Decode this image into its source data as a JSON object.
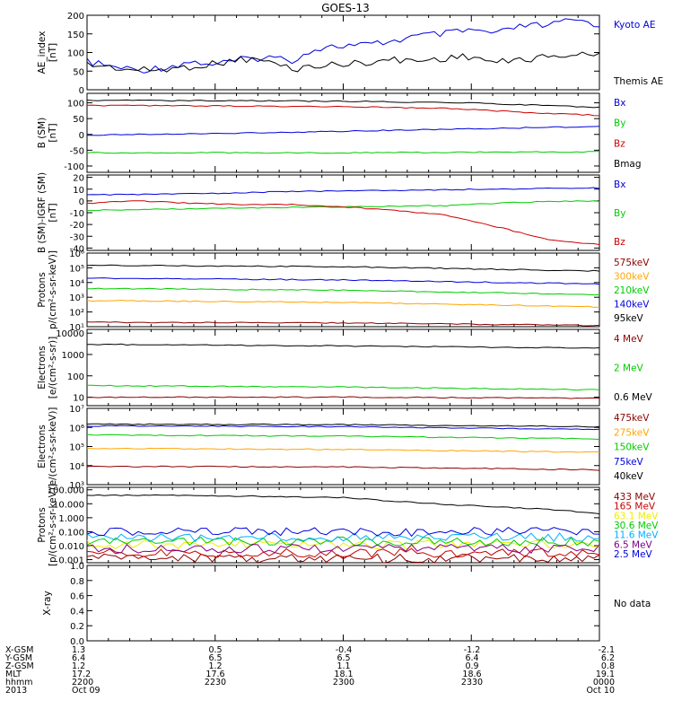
{
  "title": "GOES-13",
  "colors": {
    "blue": "#0000dd",
    "red": "#cc0000",
    "green": "#00cc00",
    "orange": "#ffa500",
    "black": "#000000",
    "darkred": "#8b0000",
    "yellow": "#eeee00",
    "cyan": "#00b0ff",
    "purple": "#800080"
  },
  "chart_data": [
    {
      "type": "line",
      "ylabel": "AE_index\n[nT]",
      "yscale": "linear",
      "ylim": [
        0,
        200
      ],
      "yticks": [
        0,
        50,
        100,
        150,
        200
      ],
      "ytick_labels": [
        "0",
        "50",
        "100",
        "150",
        "200"
      ],
      "series": [
        {
          "name": "Kyoto AE",
          "color": "blue",
          "values": [
            [
              0,
              75
            ],
            [
              0.05,
              62
            ],
            [
              0.1,
              52
            ],
            [
              0.16,
              62
            ],
            [
              0.2,
              75
            ],
            [
              0.25,
              68
            ],
            [
              0.3,
              80
            ],
            [
              0.35,
              88
            ],
            [
              0.4,
              80
            ],
            [
              0.45,
              112
            ],
            [
              0.5,
              118
            ],
            [
              0.55,
              120
            ],
            [
              0.6,
              132
            ],
            [
              0.65,
              145
            ],
            [
              0.7,
              150
            ],
            [
              0.75,
              160
            ],
            [
              0.8,
              150
            ],
            [
              0.85,
              172
            ],
            [
              0.9,
              172
            ],
            [
              0.95,
              188
            ],
            [
              1,
              175
            ]
          ]
        },
        {
          "name": "Themis AE",
          "color": "black",
          "values": [
            [
              0,
              68
            ],
            [
              0.05,
              60
            ],
            [
              0.1,
              52
            ],
            [
              0.16,
              55
            ],
            [
              0.2,
              62
            ],
            [
              0.25,
              70
            ],
            [
              0.3,
              82
            ],
            [
              0.35,
              78
            ],
            [
              0.4,
              55
            ],
            [
              0.45,
              65
            ],
            [
              0.5,
              68
            ],
            [
              0.55,
              75
            ],
            [
              0.6,
              80
            ],
            [
              0.65,
              78
            ],
            [
              0.7,
              85
            ],
            [
              0.75,
              90
            ],
            [
              0.8,
              72
            ],
            [
              0.85,
              82
            ],
            [
              0.9,
              88
            ],
            [
              0.95,
              95
            ],
            [
              1,
              92
            ]
          ]
        }
      ]
    },
    {
      "type": "line",
      "ylabel": "B (SM)\n[nT]",
      "yscale": "linear",
      "ylim": [
        -120,
        130
      ],
      "yticks": [
        -100,
        -50,
        0,
        50,
        100
      ],
      "ytick_labels": [
        "-100",
        "-50",
        "0",
        "50",
        "100"
      ],
      "series": [
        {
          "name": "Bx",
          "color": "blue",
          "values": [
            [
              0,
              -2
            ],
            [
              0.25,
              3
            ],
            [
              0.5,
              10
            ],
            [
              0.75,
              18
            ],
            [
              1,
              25
            ]
          ]
        },
        {
          "name": "By",
          "color": "green",
          "values": [
            [
              0,
              -58
            ],
            [
              0.5,
              -58
            ],
            [
              1,
              -55
            ]
          ]
        },
        {
          "name": "Bz",
          "color": "red",
          "values": [
            [
              0,
              92
            ],
            [
              0.5,
              88
            ],
            [
              0.72,
              82
            ],
            [
              0.85,
              70
            ],
            [
              1,
              60
            ]
          ]
        },
        {
          "name": "Bmag",
          "color": "black",
          "values": [
            [
              0,
              108
            ],
            [
              0.5,
              105
            ],
            [
              0.75,
              100
            ],
            [
              1,
              85
            ]
          ]
        }
      ]
    },
    {
      "type": "line",
      "ylabel": "B (SM)-IGRF (SM)\n[nT]",
      "yscale": "linear",
      "ylim": [
        -42,
        22
      ],
      "yticks": [
        -40,
        -30,
        -20,
        -10,
        0,
        10,
        20
      ],
      "ytick_labels": [
        "-40",
        "-30",
        "-20",
        "-10",
        "0",
        "10",
        "20"
      ],
      "series": [
        {
          "name": "Bx",
          "color": "blue",
          "values": [
            [
              0,
              5
            ],
            [
              0.2,
              6
            ],
            [
              0.4,
              8
            ],
            [
              0.6,
              9
            ],
            [
              0.8,
              10
            ],
            [
              1,
              11
            ]
          ]
        },
        {
          "name": "By",
          "color": "green",
          "values": [
            [
              0,
              -8
            ],
            [
              0.3,
              -6
            ],
            [
              0.5,
              -5
            ],
            [
              0.7,
              -4
            ],
            [
              0.85,
              -1
            ],
            [
              1,
              0
            ]
          ]
        },
        {
          "name": "Bz",
          "color": "red",
          "values": [
            [
              0,
              -2
            ],
            [
              0.1,
              0
            ],
            [
              0.2,
              -2
            ],
            [
              0.3,
              -3
            ],
            [
              0.4,
              -3
            ],
            [
              0.5,
              -5
            ],
            [
              0.6,
              -8
            ],
            [
              0.7,
              -12
            ],
            [
              0.8,
              -22
            ],
            [
              0.9,
              -33
            ],
            [
              1,
              -37
            ]
          ]
        }
      ]
    },
    {
      "type": "line",
      "ylabel": "Protons\np/(cm²-s-sr-keV)]",
      "yscale": "log",
      "ylim": [
        10,
        1000000
      ],
      "yticks": [
        10,
        100,
        1000,
        10000,
        100000,
        1000000
      ],
      "ytick_labels": [
        "10¹",
        "10²",
        "10³",
        "10⁴",
        "10⁵",
        "10⁶"
      ],
      "series": [
        {
          "name": "575keV",
          "color": "darkred",
          "values": [
            [
              0,
              20
            ],
            [
              0.5,
              18
            ],
            [
              1,
              12
            ]
          ]
        },
        {
          "name": "300keV",
          "color": "orange",
          "values": [
            [
              0,
              600
            ],
            [
              0.5,
              450
            ],
            [
              1,
              220
            ]
          ]
        },
        {
          "name": "210keV",
          "color": "green",
          "values": [
            [
              0,
              4000
            ],
            [
              0.5,
              3000
            ],
            [
              1,
              1500
            ]
          ]
        },
        {
          "name": "140keV",
          "color": "blue",
          "values": [
            [
              0,
              20000
            ],
            [
              0.5,
              15000
            ],
            [
              1,
              8000
            ]
          ]
        },
        {
          "name": "95keV",
          "color": "black",
          "values": [
            [
              0,
              150000
            ],
            [
              0.5,
              120000
            ],
            [
              1,
              60000
            ]
          ]
        }
      ]
    },
    {
      "type": "line",
      "ylabel": "Electrons\n[e/(cm²-s-sr)]",
      "yscale": "log",
      "ylim": [
        4,
        15000
      ],
      "yticks": [
        10,
        100,
        1000,
        10000
      ],
      "ytick_labels": [
        "10",
        "100",
        "1000",
        "10000"
      ],
      "series": [
        {
          "name": "4 MeV",
          "color": "darkred",
          "values": [
            [
              0,
              10
            ],
            [
              0.5,
              10
            ],
            [
              1,
              9
            ]
          ]
        },
        {
          "name": "2 MeV",
          "color": "green",
          "values": [
            [
              0,
              35
            ],
            [
              0.5,
              30
            ],
            [
              1,
              22
            ]
          ]
        },
        {
          "name": "0.6 MeV",
          "color": "black",
          "values": [
            [
              0,
              3000
            ],
            [
              0.5,
              2500
            ],
            [
              1,
              2000
            ]
          ]
        }
      ]
    },
    {
      "type": "line",
      "ylabel": "Electrons\ne/(cm²-s-sr-keV)]",
      "yscale": "log",
      "ylim": [
        1000,
        10000000
      ],
      "yticks": [
        1000,
        10000,
        100000,
        1000000,
        10000000
      ],
      "ytick_labels": [
        "10³",
        "10⁴",
        "10⁵",
        "10⁶",
        "10⁷"
      ],
      "series": [
        {
          "name": "475keV",
          "color": "darkred",
          "values": [
            [
              0,
              9000
            ],
            [
              0.5,
              8500
            ],
            [
              1,
              6000
            ]
          ]
        },
        {
          "name": "275keV",
          "color": "orange",
          "values": [
            [
              0,
              80000
            ],
            [
              0.5,
              70000
            ],
            [
              1,
              50000
            ]
          ]
        },
        {
          "name": "150keV",
          "color": "green",
          "values": [
            [
              0,
              400000
            ],
            [
              0.5,
              350000
            ],
            [
              1,
              250000
            ]
          ]
        },
        {
          "name": "75keV",
          "color": "blue",
          "values": [
            [
              0,
              1200000
            ],
            [
              0.5,
              1100000
            ],
            [
              1,
              800000
            ]
          ]
        },
        {
          "name": "40keV",
          "color": "black",
          "values": [
            [
              0,
              1500000
            ],
            [
              0.5,
              1400000
            ],
            [
              1,
              1100000
            ]
          ]
        }
      ]
    },
    {
      "type": "line",
      "ylabel": "Protons\n[p/(cm²-s-sr-keV)]",
      "yscale": "log",
      "ylim": [
        0.0006,
        150
      ],
      "yticks": [
        0.001,
        0.01,
        0.1,
        1,
        10,
        100
      ],
      "ytick_labels": [
        "0.001",
        "0.010",
        "0.100",
        "1.000",
        "10.000",
        "100.000"
      ],
      "series": [
        {
          "name": "433 MeV",
          "color": "darkred",
          "values": [
            [
              0,
              0.0012
            ],
            [
              1,
              0.0012
            ]
          ]
        },
        {
          "name": "165 MeV",
          "color": "red",
          "values": [
            [
              0,
              0.003
            ],
            [
              1,
              0.003
            ]
          ]
        },
        {
          "name": "63.1 MeV",
          "color": "yellow",
          "values": [
            [
              0,
              0.012
            ],
            [
              1,
              0.012
            ]
          ]
        },
        {
          "name": "30.6 MeV",
          "color": "green",
          "values": [
            [
              0,
              0.02
            ],
            [
              1,
              0.02
            ]
          ]
        },
        {
          "name": "11.6 MeV",
          "color": "cyan",
          "values": [
            [
              0,
              0.04
            ],
            [
              1,
              0.04
            ]
          ]
        },
        {
          "name": "6.5 MeV",
          "color": "purple",
          "values": [
            [
              0,
              0.006
            ],
            [
              1,
              0.006
            ]
          ]
        },
        {
          "name": "2.5 MeV",
          "color": "blue",
          "values": [
            [
              0,
              0.1
            ],
            [
              1,
              0.1
            ]
          ]
        },
        {
          "name": "",
          "color": "black",
          "values": [
            [
              0,
              40
            ],
            [
              0.2,
              40
            ],
            [
              0.4,
              32
            ],
            [
              0.5,
              28
            ],
            [
              0.6,
              15
            ],
            [
              0.7,
              9
            ],
            [
              0.8,
              6
            ],
            [
              0.9,
              4
            ],
            [
              1,
              2
            ]
          ]
        }
      ]
    },
    {
      "type": "line",
      "ylabel": "X-ray",
      "yscale": "linear",
      "ylim": [
        0,
        1
      ],
      "yticks": [
        0,
        0.2,
        0.4,
        0.6,
        0.8,
        1.0
      ],
      "ytick_labels": [
        "0.0",
        "0.2",
        "0.4",
        "0.6",
        "0.8",
        "1.0"
      ],
      "series": [],
      "annotation": "No data"
    }
  ],
  "footer": {
    "rows": [
      {
        "label": "X-GSM",
        "values": [
          "1.3",
          "0.5",
          "-0.4",
          "-1.2",
          "-2.1"
        ]
      },
      {
        "label": "Y-GSM",
        "values": [
          "6.4",
          "6.5",
          "6.5",
          "6.4",
          "6.2"
        ]
      },
      {
        "label": "Z-GSM",
        "values": [
          "1.2",
          "1.2",
          "1.1",
          "0.9",
          "0.8"
        ]
      },
      {
        "label": "MLT",
        "values": [
          "17.2",
          "17.6",
          "18.1",
          "18.6",
          "19.1"
        ]
      },
      {
        "label": "hhmm",
        "values": [
          "2200",
          "2230",
          "2300",
          "2330",
          "0000"
        ]
      },
      {
        "label": "2013",
        "values": [
          "Oct 09",
          "",
          "",
          "",
          "Oct 10"
        ]
      }
    ]
  }
}
